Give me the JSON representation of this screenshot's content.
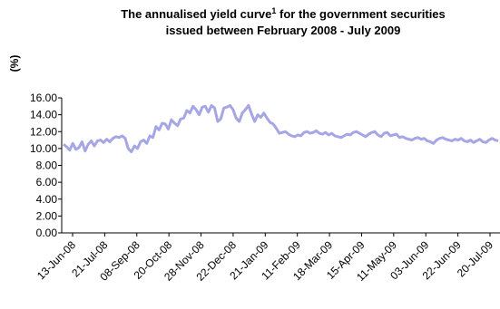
{
  "chart_data": {
    "type": "line",
    "title_lines": [
      "The annualised yield curve",
      "issued between February 2008 - July  2009"
    ],
    "title_superscript": "1",
    "title_line1_tail": " for the government securities",
    "ylabel": "(%)",
    "xlabel": "",
    "ylim": [
      0,
      16
    ],
    "yticks": [
      "0.00",
      "2.00",
      "4.00",
      "6.00",
      "8.00",
      "10.00",
      "12.00",
      "14.00",
      "16.00"
    ],
    "grid": false,
    "line_color": "#a6a6e6",
    "x_tick_labels": [
      "13-Jun-08",
      "21-Jul-08",
      "08-Sep-08",
      "20-Oct-08",
      "28-Nov-08",
      "22-Dec-08",
      "21-Jan-09",
      "11-Feb-09",
      "18-Mar-09",
      "15-Apr-09",
      "11-May-09",
      "03-Jun-09",
      "22-Jun-09",
      "20-Jul-09"
    ],
    "series": [
      {
        "values": [
          10.5,
          10.2,
          9.8,
          10.6,
          9.9,
          10.1,
          10.8,
          9.7,
          10.5,
          10.9,
          10.3,
          10.9,
          11.0,
          10.7,
          11.1,
          10.8,
          11.2,
          11.4,
          11.3,
          11.5,
          11.2,
          10.0,
          9.6,
          10.3,
          10.0,
          10.8,
          11.0,
          10.6,
          11.5,
          11.3,
          12.6,
          12.2,
          13.0,
          12.9,
          12.3,
          13.4,
          13.0,
          12.7,
          13.5,
          13.6,
          14.5,
          14.2,
          15.0,
          14.6,
          14.0,
          14.9,
          15.0,
          14.3,
          15.1,
          14.8,
          13.2,
          13.5,
          14.8,
          14.9,
          15.1,
          14.6,
          13.6,
          13.2,
          14.2,
          14.6,
          15.1,
          14.1,
          13.2,
          14.0,
          13.7,
          14.2,
          13.6,
          13.1,
          12.9,
          12.4,
          11.8,
          11.9,
          12.0,
          11.7,
          11.5,
          11.4,
          11.6,
          11.5,
          11.9,
          12.0,
          11.8,
          11.9,
          12.1,
          11.8,
          11.7,
          11.9,
          11.6,
          11.8,
          11.5,
          11.4,
          11.3,
          11.5,
          11.7,
          11.6,
          11.9,
          12.0,
          11.8,
          11.6,
          11.4,
          11.7,
          11.9,
          12.0,
          11.6,
          11.4,
          11.8,
          11.9,
          11.5,
          11.6,
          11.7,
          11.3,
          11.4,
          11.2,
          11.1,
          11.0,
          11.2,
          11.3,
          11.1,
          11.2,
          10.9,
          10.8,
          10.6,
          11.0,
          11.2,
          11.3,
          11.1,
          11.0,
          10.9,
          11.1,
          11.0,
          11.2,
          10.9,
          10.8,
          11.0,
          10.7,
          10.9,
          11.1,
          10.8,
          10.7,
          11.0,
          11.2,
          11.0,
          10.9
        ]
      }
    ]
  }
}
